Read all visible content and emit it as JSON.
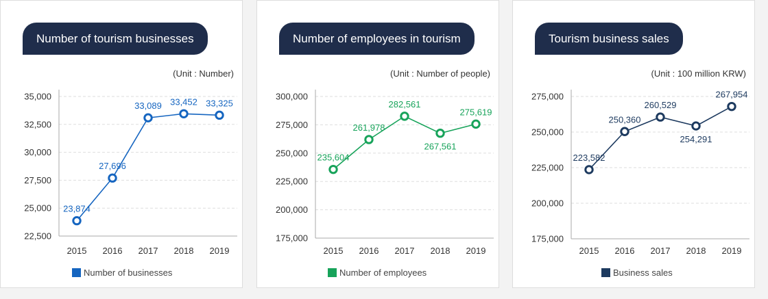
{
  "panels": [
    {
      "title": "Number of tourism businesses",
      "unit": "(Unit : Number)",
      "legend": "Number of businesses",
      "color": "#1565c0",
      "chart_data": {
        "type": "line",
        "x": [
          "2015",
          "2016",
          "2017",
          "2018",
          "2019"
        ],
        "series": [
          {
            "name": "Number of businesses",
            "values": [
              23874,
              27696,
              33089,
              33452,
              33325
            ]
          }
        ],
        "value_labels": [
          "23,874",
          "27,696",
          "33,089",
          "33,452",
          "33,325"
        ],
        "label_side": [
          "above",
          "above",
          "above",
          "above",
          "above"
        ],
        "yticks": [
          "22,500",
          "25,000",
          "27,500",
          "30,000",
          "32,500",
          "35,000"
        ],
        "ylim": [
          22500,
          35000
        ]
      }
    },
    {
      "title": "Number of employees in tourism",
      "unit": "(Unit : Number of people)",
      "legend": "Number of employees",
      "color": "#17a35a",
      "chart_data": {
        "type": "line",
        "x": [
          "2015",
          "2016",
          "2017",
          "2018",
          "2019"
        ],
        "series": [
          {
            "name": "Number of employees",
            "values": [
              235604,
              261978,
              282561,
              267561,
              275619
            ]
          }
        ],
        "value_labels": [
          "235,604",
          "261,978",
          "282,561",
          "267,561",
          "275,619"
        ],
        "label_side": [
          "above",
          "above",
          "above",
          "below",
          "above"
        ],
        "yticks": [
          "175,000",
          "200,000",
          "225,000",
          "250,000",
          "275,000",
          "300,000"
        ],
        "ylim": [
          175000,
          300000
        ]
      }
    },
    {
      "title": "Tourism business sales",
      "unit": "(Unit : 100 million KRW)",
      "legend": "Business sales",
      "color": "#1d3a5f",
      "chart_data": {
        "type": "line",
        "x": [
          "2015",
          "2016",
          "2017",
          "2018",
          "2019"
        ],
        "series": [
          {
            "name": "Business sales",
            "values": [
              223582,
              250360,
              260529,
              254291,
              267954
            ]
          }
        ],
        "value_labels": [
          "223,582",
          "250,360",
          "260,529",
          "254,291",
          "267,954"
        ],
        "label_side": [
          "above",
          "above",
          "above",
          "below",
          "above"
        ],
        "yticks": [
          "175,000",
          "200,000",
          "225,000",
          "250,000",
          "275,000"
        ],
        "ylim": [
          175000,
          275000
        ]
      }
    }
  ]
}
